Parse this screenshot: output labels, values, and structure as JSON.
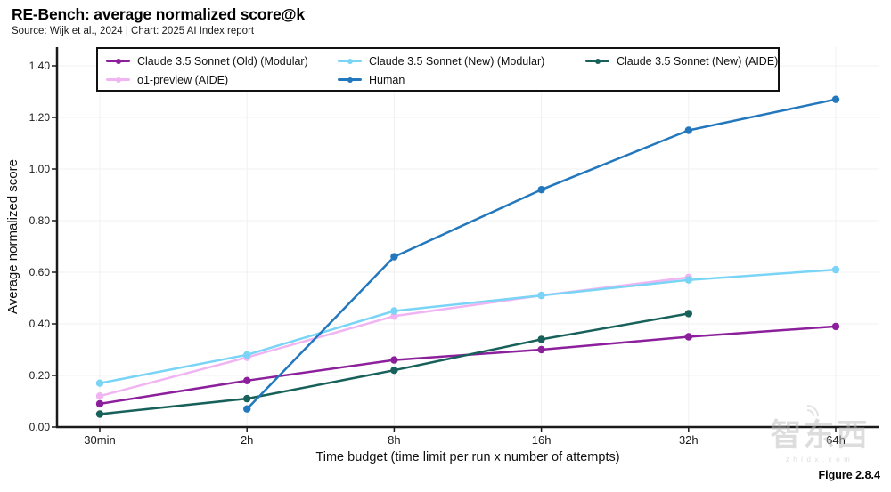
{
  "chart_data": {
    "type": "line",
    "title": "RE-Bench: average normalized score@k",
    "subtitle": "Source: Wijk et al., 2024 | Chart: 2025 AI Index report",
    "xlabel": "Time budget (time limit per run x number of attempts)",
    "ylabel": "Average normalized score",
    "x_categories": [
      "30min",
      "2h",
      "8h",
      "16h",
      "32h",
      "64h"
    ],
    "ylim": [
      0.0,
      1.4
    ],
    "ytick_step": 0.2,
    "ytick_labels": [
      "0.00",
      "0.20",
      "0.40",
      "0.60",
      "0.80",
      "1.00",
      "1.20",
      "1.40"
    ],
    "grid": true,
    "legend_position": "top-inside-box",
    "series": [
      {
        "name": "Claude 3.5 Sonnet (Old) (Modular)",
        "color": "#8C1F9B",
        "x_indices": [
          0,
          1,
          2,
          3,
          4,
          5
        ],
        "values": [
          0.09,
          0.18,
          0.26,
          0.3,
          0.35,
          0.39
        ]
      },
      {
        "name": "Claude 3.5 Sonnet (New) (Modular)",
        "color": "#79D4F6",
        "x_indices": [
          0,
          1,
          2,
          3,
          4,
          5
        ],
        "values": [
          0.17,
          0.28,
          0.45,
          0.51,
          0.57,
          0.61
        ]
      },
      {
        "name": "Claude 3.5 Sonnet (New) (AIDE)",
        "color": "#17615A",
        "x_indices": [
          0,
          1,
          2,
          3,
          4
        ],
        "values": [
          0.05,
          0.11,
          0.22,
          0.34,
          0.44
        ]
      },
      {
        "name": "o1-preview (AIDE)",
        "color": "#F0B4F2",
        "x_indices": [
          0,
          1,
          2,
          3,
          4
        ],
        "values": [
          0.12,
          0.27,
          0.43,
          0.51,
          0.58
        ]
      },
      {
        "name": "Human",
        "color": "#2377BD",
        "x_indices": [
          1,
          2,
          3,
          4,
          5
        ],
        "values": [
          0.07,
          0.66,
          0.92,
          1.15,
          1.27
        ]
      }
    ],
    "legend_order": [
      0,
      1,
      2,
      3,
      4
    ],
    "figure_label": "Figure 2.8.4",
    "watermark": {
      "text": "智东西",
      "subtext": "zhidx.com"
    },
    "style": {
      "axis_color": "#1a1a1a",
      "grid_color": "#f1f1f1",
      "background": "#ffffff"
    }
  }
}
